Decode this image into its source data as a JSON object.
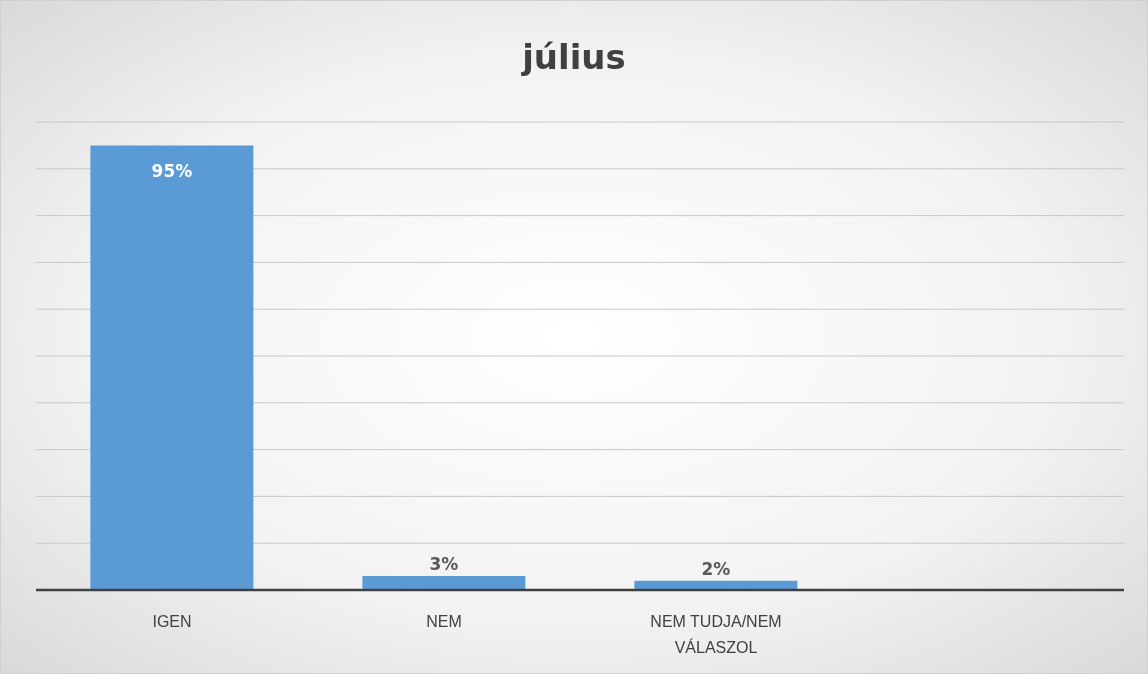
{
  "chart_data": {
    "type": "bar",
    "title": "július",
    "categories": [
      "IGEN",
      "NEM",
      "NEM TUDJA/NEM VÁLASZOL",
      null
    ],
    "values": [
      95,
      3,
      2,
      null
    ],
    "color": "#5b9bd5",
    "value_labels": [
      "95%",
      "3%",
      "2%",
      null
    ],
    "ylim": [
      0,
      100
    ],
    "yticks": [
      {
        "value": 0,
        "label": null
      },
      {
        "value": 10,
        "label": null
      },
      {
        "value": 20,
        "label": null
      },
      {
        "value": 30,
        "label": null
      },
      {
        "value": 40,
        "label": null
      },
      {
        "value": 50,
        "label": null
      },
      {
        "value": 60,
        "label": null
      },
      {
        "value": 70,
        "label": null
      },
      {
        "value": 80,
        "label": null
      },
      {
        "value": 90,
        "label": null
      },
      {
        "value": 100,
        "label": null
      }
    ],
    "grid": "y",
    "tick_labels": "x"
  }
}
